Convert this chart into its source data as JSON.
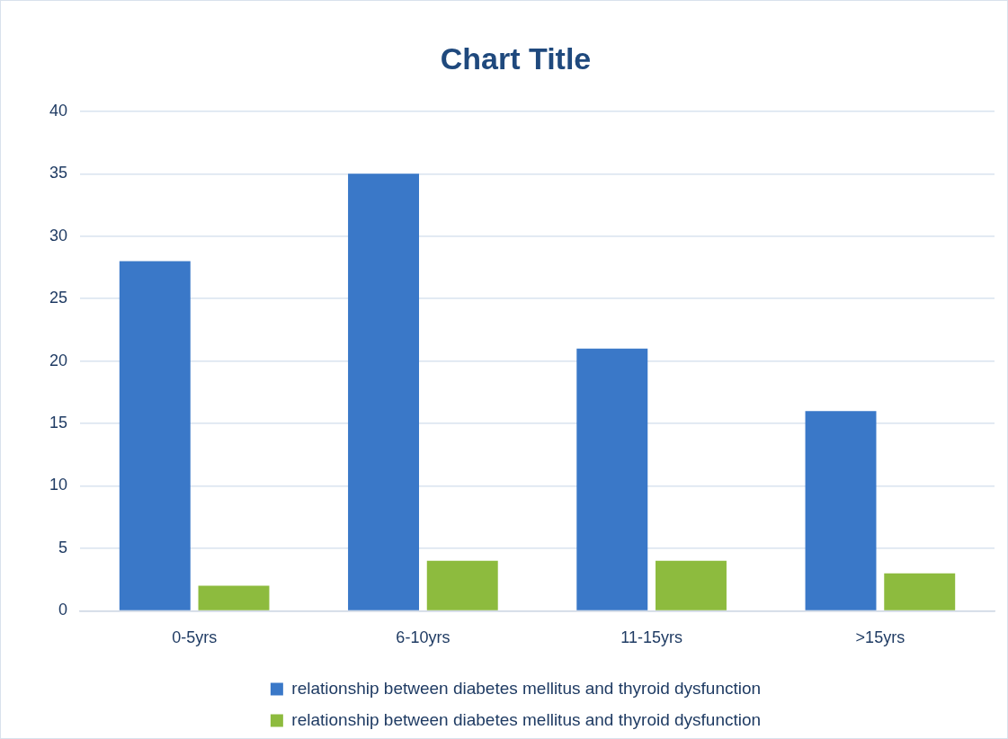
{
  "chart_data": {
    "type": "bar",
    "title": "Chart Title",
    "categories": [
      "0-5yrs",
      "6-10yrs",
      "11-15yrs",
      ">15yrs"
    ],
    "series": [
      {
        "name": "relationship between diabetes mellitus and thyroid dysfunction",
        "color": "#3a78c8",
        "values": [
          28,
          35,
          21,
          16
        ]
      },
      {
        "name": "relationship between diabetes mellitus and thyroid dysfunction",
        "color": "#8dbb3e",
        "values": [
          2,
          4,
          4,
          3
        ]
      }
    ],
    "ylim": [
      0,
      40
    ],
    "yticks": [
      0,
      5,
      10,
      15,
      20,
      25,
      30,
      35,
      40
    ],
    "grid": "y",
    "legend": "bottom"
  }
}
